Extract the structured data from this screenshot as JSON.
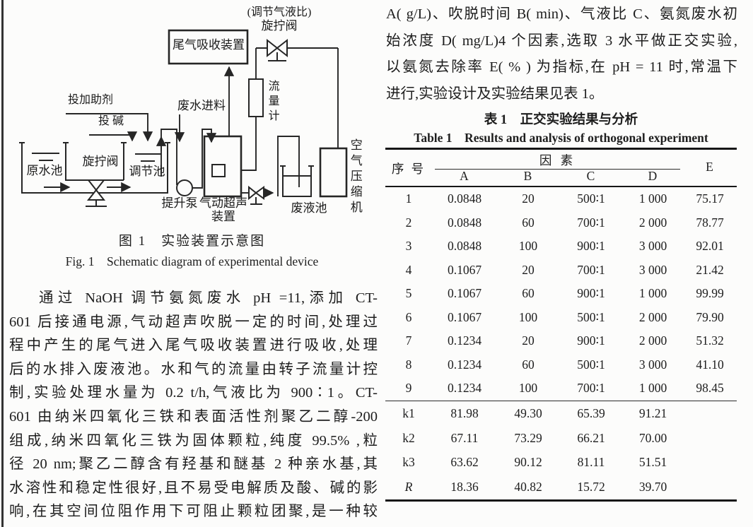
{
  "figure": {
    "labels": {
      "valve_note": "(调节气液比)",
      "valve_top": "旋拧阀",
      "absorber": "尾气吸收装置",
      "flowmeter": "流量计",
      "add_agent": "投加助剂",
      "add_alkali": "投 碱",
      "feed": "废水进料",
      "raw_tank": "原水池",
      "valve_mid": "旋拧阀",
      "adjust_tank": "调节池",
      "pump": "提升泵",
      "ultrasonic_1": "气动超声",
      "ultrasonic_2": "装置",
      "waste_tank": "废液池",
      "compressor": "空气压缩机"
    },
    "caption_zh": "图 1　实验装置示意图",
    "caption_en": "Fig. 1　Schematic diagram of experimental device"
  },
  "left_para_lines": [
    "通过 NaOH 调节氨氮废水 pH =11,添加 CT-",
    "601 后接通电源,气动超声吹脱一定的时间,处理过",
    "程中产生的尾气进入尾气吸收装置进行吸收,处理",
    "后的水排入废液池。水和气的流量由转子流量计控",
    "制,实验处理水量为 0.2 t/h,气液比为 900∶1。CT-",
    "601 由纳米四氧化三铁和表面活性剂聚乙二醇-200",
    "组成,纳米四氧化三铁为固体颗粒,纯度 99.5% ,粒",
    "径 20 nm;聚乙二醇含有羟基和醚基 2 种亲水基,其",
    "水溶性和稳定性很好,且不易受电解质及酸、碱的影",
    "响,在其空间位阻作用下可阻止颗粒团聚,是一种较"
  ],
  "right_intro_lines": [
    "A( g/L)、吹脱时间 B( min)、气液比 C、氨氮废水初",
    "始浓度 D( mg/L)4 个因素,选取 3 水平做正交实验,",
    "以氨氮去除率 E( % ) 为指标,在 pH = 11 时,常温下",
    "进行,实验设计及实验结果见表 1。"
  ],
  "table": {
    "caption_zh": "表 1　正交实验结果与分析",
    "caption_en": "Table 1　Results and analysis of orthogonal experiment",
    "header": {
      "seq": "序 号",
      "factor": "因 素",
      "col_a": "A",
      "col_b": "B",
      "col_c": "C",
      "col_d": "D",
      "col_e": "E"
    },
    "rows": [
      [
        "1",
        "0.0848",
        "20",
        "500∶1",
        "1 000",
        "75.17"
      ],
      [
        "2",
        "0.0848",
        "60",
        "700∶1",
        "2 000",
        "78.77"
      ],
      [
        "3",
        "0.0848",
        "100",
        "900∶1",
        "3 000",
        "92.01"
      ],
      [
        "4",
        "0.1067",
        "20",
        "700∶1",
        "3 000",
        "21.42"
      ],
      [
        "5",
        "0.1067",
        "60",
        "900∶1",
        "1 000",
        "99.99"
      ],
      [
        "6",
        "0.1067",
        "100",
        "500∶1",
        "2 000",
        "79.90"
      ],
      [
        "7",
        "0.1234",
        "20",
        "900∶1",
        "2 000",
        "51.32"
      ],
      [
        "8",
        "0.1234",
        "60",
        "500∶1",
        "3 000",
        "41.10"
      ],
      [
        "9",
        "0.1234",
        "100",
        "700∶1",
        "1 000",
        "98.45"
      ]
    ],
    "k_rows": [
      [
        "k1",
        "81.98",
        "49.30",
        "65.39",
        "91.21",
        ""
      ],
      [
        "k2",
        "67.11",
        "73.29",
        "66.21",
        "70.00",
        ""
      ],
      [
        "k3",
        "63.62",
        "90.12",
        "81.11",
        "51.51",
        ""
      ],
      [
        "R",
        "18.36",
        "40.82",
        "15.72",
        "39.70",
        ""
      ]
    ]
  },
  "colors": {
    "ink": "#1d1d1d",
    "line": "#262626",
    "background": "#fcfcfb"
  }
}
